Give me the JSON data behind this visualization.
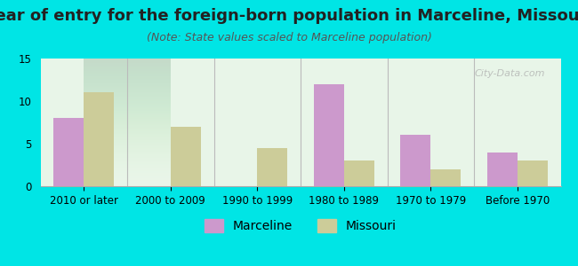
{
  "title": "Year of entry for the foreign-born population in Marceline, Missouri",
  "subtitle": "(Note: State values scaled to Marceline population)",
  "categories": [
    "2010 or later",
    "2000 to 2009",
    "1990 to 1999",
    "1980 to 1989",
    "1970 to 1979",
    "Before 1970"
  ],
  "marceline_values": [
    8,
    0,
    0,
    12,
    6,
    4
  ],
  "missouri_values": [
    11,
    7,
    4.5,
    3,
    2,
    3
  ],
  "marceline_color": "#cc99cc",
  "missouri_color": "#cccc99",
  "background_color": "#00e5e5",
  "plot_bg_start": "#e8f5e8",
  "plot_bg_end": "#ffffff",
  "ylim": [
    0,
    15
  ],
  "yticks": [
    0,
    5,
    10,
    15
  ],
  "bar_width": 0.35,
  "title_fontsize": 13,
  "subtitle_fontsize": 9,
  "legend_fontsize": 10,
  "tick_fontsize": 8.5,
  "watermark": "City-Data.com"
}
